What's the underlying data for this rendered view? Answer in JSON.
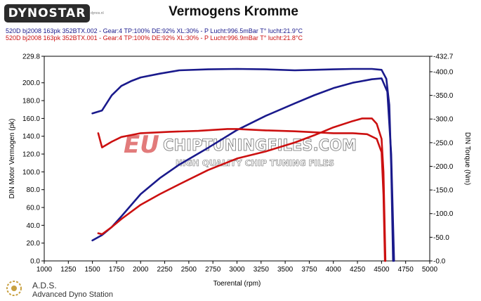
{
  "logo_text": "DYNOSTAR",
  "logo_sub": "dynos.nl",
  "chart_data": {
    "type": "line",
    "title": "Vermogens Kromme",
    "runs": [
      {
        "label": "520D bj2008 163pk 352BTX.002 - Gear:4 TP:100% DE:92% XL:30%   - P Lucht:996.5mBar T° lucht:21.9°C",
        "color": "#1a1a8c"
      },
      {
        "label": "520D bj2008 163pk 352BTX.001 - Gear:4 TP:100% DE:92% XL:30%   - P Lucht:996.9mBar T° lucht:21.8°C",
        "color": "#cc1010"
      }
    ],
    "xlabel": "Toerental (rpm)",
    "ylabel_left": "DIN Motor Vermogen (pk)",
    "ylabel_right": "DIN Torque (Nm)",
    "xlim": [
      1000,
      5000
    ],
    "ylim_left": [
      0,
      229.8
    ],
    "ylim_right": [
      0,
      432.7
    ],
    "x_ticks": [
      "1000",
      "1250",
      "1500",
      "1750",
      "2000",
      "2250",
      "2500",
      "2750",
      "3000",
      "3250",
      "3500",
      "3750",
      "4000",
      "4250",
      "4500",
      "4750",
      "5000"
    ],
    "y_left_ticks": [
      "0.0",
      "20.0",
      "40.0",
      "60.0",
      "80.0",
      "100.0",
      "120.0",
      "140.0",
      "160.0",
      "180.0",
      "200.0",
      "229.8"
    ],
    "y_right_ticks": [
      "-0.0",
      "-50.0",
      "-100.0",
      "-150.0",
      "-200.0",
      "-250.0",
      "-300.0",
      "-350.0",
      "-400.0",
      "-432.7"
    ],
    "y_right_tick_values": [
      0,
      50,
      100,
      150,
      200,
      250,
      300,
      350,
      400,
      432.7
    ],
    "grid": false,
    "series": [
      {
        "color": "#1a1a8c",
        "axis": "right",
        "points": [
          [
            1500,
            312
          ],
          [
            1600,
            318
          ],
          [
            1700,
            350
          ],
          [
            1800,
            370
          ],
          [
            1900,
            380
          ],
          [
            2000,
            388
          ],
          [
            2200,
            396
          ],
          [
            2400,
            403
          ],
          [
            2700,
            405
          ],
          [
            3000,
            406
          ],
          [
            3300,
            405
          ],
          [
            3600,
            403
          ],
          [
            3800,
            404
          ],
          [
            4000,
            405
          ],
          [
            4200,
            406
          ],
          [
            4400,
            406
          ],
          [
            4500,
            404
          ],
          [
            4550,
            385
          ],
          [
            4580,
            330
          ],
          [
            4600,
            200
          ],
          [
            4620,
            0
          ]
        ]
      },
      {
        "color": "#1a1a8c",
        "axis": "left",
        "points": [
          [
            1500,
            23
          ],
          [
            1600,
            29
          ],
          [
            1700,
            38
          ],
          [
            1800,
            50
          ],
          [
            2000,
            75
          ],
          [
            2200,
            93
          ],
          [
            2400,
            108
          ],
          [
            2700,
            127
          ],
          [
            3000,
            147
          ],
          [
            3300,
            163
          ],
          [
            3600,
            177
          ],
          [
            3800,
            186
          ],
          [
            4000,
            194
          ],
          [
            4200,
            200
          ],
          [
            4400,
            204
          ],
          [
            4500,
            205
          ],
          [
            4560,
            190
          ],
          [
            4600,
            120
          ],
          [
            4630,
            0
          ]
        ]
      },
      {
        "color": "#cc1010",
        "axis": "right",
        "points": [
          [
            1560,
            270
          ],
          [
            1600,
            240
          ],
          [
            1700,
            252
          ],
          [
            1800,
            262
          ],
          [
            1900,
            266
          ],
          [
            2000,
            270
          ],
          [
            2300,
            273
          ],
          [
            2600,
            275
          ],
          [
            2900,
            279
          ],
          [
            3000,
            279
          ],
          [
            3300,
            276
          ],
          [
            3600,
            274
          ],
          [
            3800,
            272
          ],
          [
            4000,
            270
          ],
          [
            4200,
            270
          ],
          [
            4350,
            268
          ],
          [
            4450,
            258
          ],
          [
            4500,
            230
          ],
          [
            4520,
            140
          ],
          [
            4535,
            0
          ]
        ]
      },
      {
        "color": "#cc1010",
        "axis": "left",
        "points": [
          [
            1560,
            31
          ],
          [
            1600,
            30
          ],
          [
            1700,
            38
          ],
          [
            1800,
            47
          ],
          [
            2000,
            63
          ],
          [
            2200,
            75
          ],
          [
            2400,
            86
          ],
          [
            2700,
            102
          ],
          [
            3000,
            115
          ],
          [
            3300,
            123
          ],
          [
            3600,
            133
          ],
          [
            3800,
            141
          ],
          [
            4000,
            150
          ],
          [
            4200,
            157
          ],
          [
            4300,
            160
          ],
          [
            4400,
            160
          ],
          [
            4450,
            154
          ],
          [
            4500,
            137
          ],
          [
            4520,
            100
          ],
          [
            4540,
            0
          ]
        ]
      }
    ]
  },
  "watermark": {
    "main": "CHIPTUNINGFILES.COM",
    "prefix": "EU",
    "sub": "HIGH QUALITY CHIP TUNING FILES"
  },
  "footer": {
    "name": "A.D.S.",
    "subtitle": "Advanced Dyno Station"
  }
}
